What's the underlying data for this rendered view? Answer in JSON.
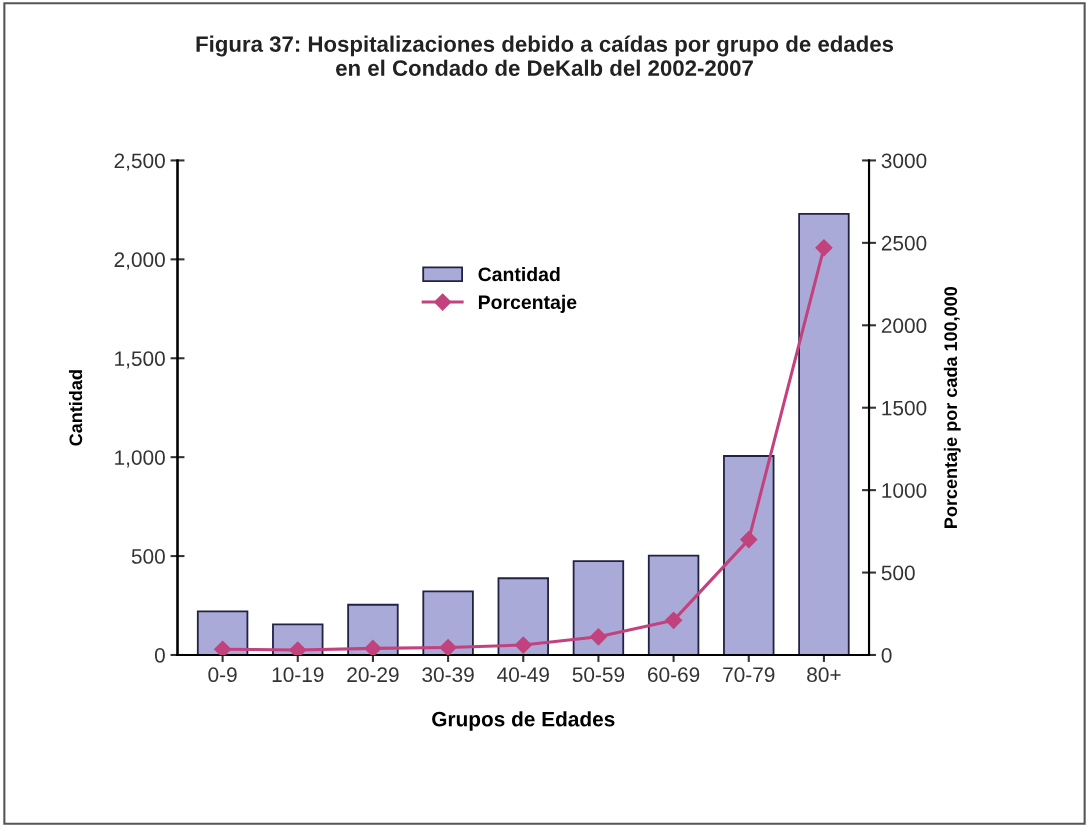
{
  "chart_data": {
    "type": "bar",
    "title": "Figura 37: Hospitalizaciones debido a caídas por grupo de edades\nen el Condado de DeKalb del 2002-2007",
    "xlabel": "Grupos de Edades",
    "ylabel": "Cantidad",
    "y2label": "Porcentaje por cada 100,000",
    "categories": [
      "0-9",
      "10-19",
      "20-29",
      "30-39",
      "40-49",
      "50-59",
      "60-69",
      "70-79",
      "80+"
    ],
    "series": [
      {
        "name": "Cantidad",
        "color": "#aaaad8",
        "values": [
          220,
          155,
          254,
          322,
          388,
          474,
          502,
          1006,
          2230
        ]
      },
      {
        "name": "Porcentaje",
        "type": "line",
        "axis": "y2",
        "color": "#c2427e",
        "marker": "diamond",
        "values": [
          35,
          30,
          40,
          45,
          60,
          110,
          210,
          700,
          2470
        ]
      }
    ],
    "ylim": [
      0,
      2500
    ],
    "yticks": [
      {
        "value": 0,
        "label": "0"
      },
      {
        "value": 500,
        "label": "500"
      },
      {
        "value": 1000,
        "label": "1,000"
      },
      {
        "value": 1500,
        "label": "1,500"
      },
      {
        "value": 2000,
        "label": "2,000"
      },
      {
        "value": 2500,
        "label": "2,500"
      }
    ],
    "y2lim": [
      0,
      3000
    ],
    "y2ticks": [
      0,
      500,
      1000,
      1500,
      2000,
      2500,
      3000
    ],
    "grid": false,
    "legend": "top left"
  }
}
